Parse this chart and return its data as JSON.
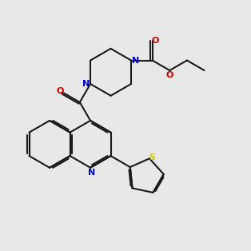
{
  "background_color": "#e8e8e8",
  "bond_color": "#1a1a1a",
  "N_color": "#0000cc",
  "O_color": "#cc0000",
  "S_color": "#cccc00",
  "lw": 1.5,
  "xlim": [
    0,
    10
  ],
  "ylim": [
    0,
    10
  ]
}
